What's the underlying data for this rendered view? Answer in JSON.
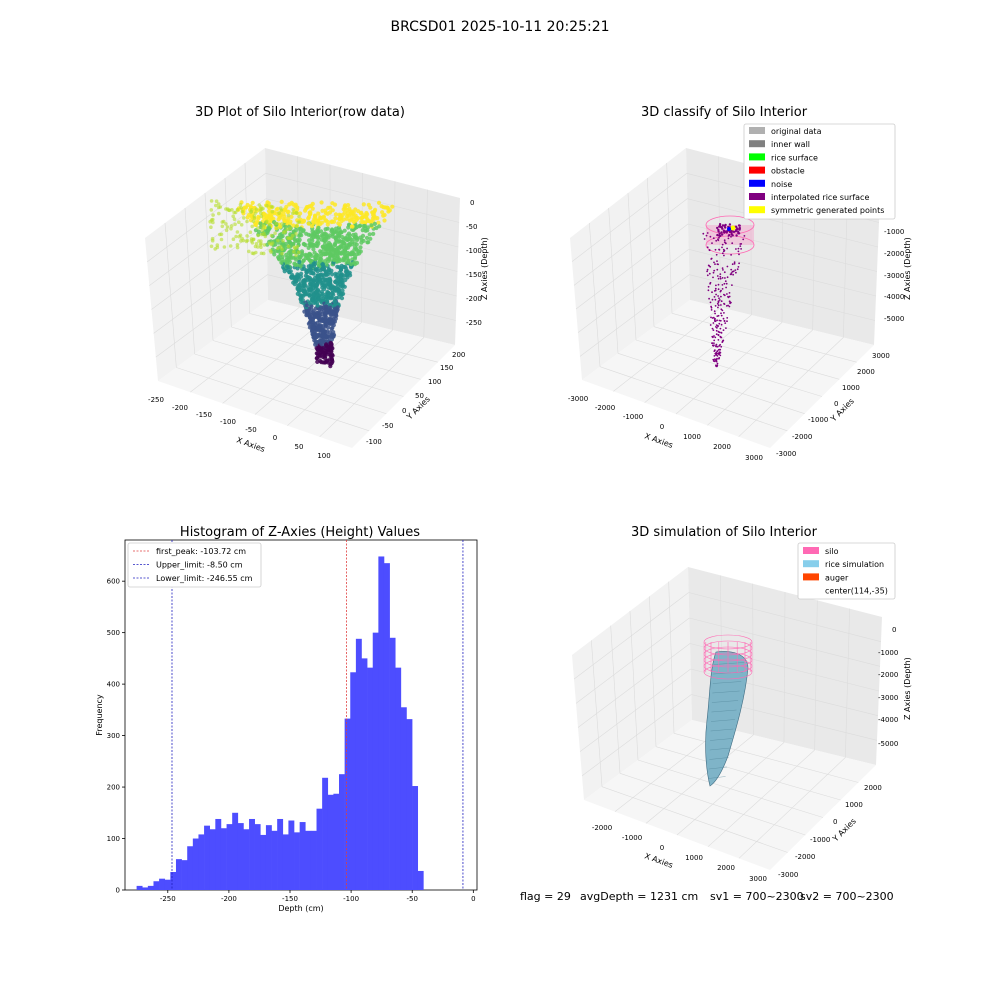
{
  "figure": {
    "suptitle": "BRCSD01 2025-10-11 20:25:21",
    "footer": {
      "flag": "flag = 29",
      "avg_depth": "avgDepth = 1231 cm",
      "sv1": "sv1 = 700~2300",
      "sv2": "sv2 = 700~2300"
    }
  },
  "plot_raw": {
    "title": "3D Plot of Silo Interior(row data)",
    "xlabel": "X Axies",
    "ylabel": "Y Axies",
    "zlabel": "Z Axies (Depth)",
    "xticks": [
      "-250",
      "-200",
      "-150",
      "-100",
      "-50",
      "0",
      "50",
      "100"
    ],
    "yticks": [
      "200",
      "150",
      "100",
      "50",
      "0",
      "-50",
      "-100"
    ],
    "zticks": [
      "0",
      "-50",
      "-100",
      "-150",
      "-200",
      "-250"
    ],
    "colormap": [
      "#440154",
      "#3b528b",
      "#21918c",
      "#5ec962",
      "#fde725"
    ]
  },
  "plot_classify": {
    "title": "3D classify of Silo Interior",
    "xlabel": "X Axies",
    "ylabel": "Y Axies",
    "zlabel": "Z Axies (Depth)",
    "xticks": [
      "-3000",
      "-2000",
      "-1000",
      "0",
      "1000",
      "2000",
      "3000"
    ],
    "yticks": [
      "3000",
      "2000",
      "1000",
      "0",
      "-1000",
      "-2000",
      "-3000"
    ],
    "zticks": [
      "0",
      "-1000",
      "-2000",
      "-3000",
      "-4000",
      "-5000"
    ],
    "legend": [
      {
        "label": "original data",
        "color": "#b0b0b0"
      },
      {
        "label": "inner wall",
        "color": "#808080"
      },
      {
        "label": "rice surface",
        "color": "#00ff00"
      },
      {
        "label": "obstacle",
        "color": "#ff0000"
      },
      {
        "label": "noise",
        "color": "#0000ff"
      },
      {
        "label": "interpolated rice surface",
        "color": "#800080"
      },
      {
        "label": "symmetric generated points",
        "color": "#ffff00"
      }
    ]
  },
  "plot_sim": {
    "title": "3D simulation of Silo Interior",
    "xlabel": "X Axies",
    "ylabel": "Y Axies",
    "zlabel": "Z Axies (Depth)",
    "xticks": [
      "-2000",
      "-1000",
      "0",
      "1000",
      "2000",
      "3000"
    ],
    "yticks": [
      "2000",
      "1000",
      "0",
      "-1000",
      "-2000",
      "-3000"
    ],
    "zticks": [
      "0",
      "-1000",
      "-2000",
      "-3000",
      "-4000",
      "-5000"
    ],
    "legend": [
      {
        "label": "silo",
        "color": "#ff69b4"
      },
      {
        "label": "rice simulation",
        "color": "#87ceeb"
      },
      {
        "label": "auger",
        "color": "#ff4500"
      },
      {
        "label": "center(114,-35)",
        "color": ""
      }
    ]
  },
  "chart_data": {
    "type": "bar",
    "title": "Histogram of Z-Axies (Height) Values",
    "xlabel": "Depth (cm)",
    "ylabel": "Frequency",
    "xlim": [
      -285,
      3
    ],
    "ylim": [
      0,
      680
    ],
    "xticks": [
      -250,
      -200,
      -150,
      -100,
      -50,
      0
    ],
    "yticks": [
      0,
      100,
      200,
      300,
      400,
      500,
      600
    ],
    "bar_color": "#4d4dff",
    "bin_start": -275.5,
    "bin_width": 4.6,
    "values": [
      8,
      5,
      8,
      17,
      22,
      20,
      35,
      60,
      58,
      85,
      100,
      108,
      125,
      118,
      138,
      120,
      128,
      150,
      130,
      118,
      138,
      128,
      107,
      126,
      115,
      138,
      108,
      135,
      112,
      132,
      115,
      115,
      158,
      218,
      185,
      187,
      225,
      333,
      423,
      488,
      450,
      432,
      500,
      648,
      635,
      490,
      432,
      355,
      332,
      202,
      37
    ],
    "vlines": [
      {
        "x": -103.72,
        "color": "#e04040",
        "label": "first_peak: -103.72 cm"
      },
      {
        "x": -8.5,
        "color": "#2020c0",
        "label": "Upper_limit: -8.50 cm"
      },
      {
        "x": -246.55,
        "color": "#2020c0",
        "label": "Lower_limit: -246.55 cm"
      }
    ]
  }
}
